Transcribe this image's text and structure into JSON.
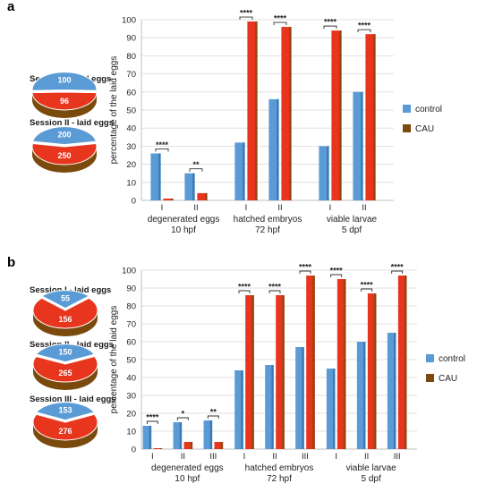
{
  "colors": {
    "control": "#5a9bd5",
    "control_dark": "#2f6ea8",
    "cau": "#e8351e",
    "cau_dark": "#7a4a0c",
    "purple": "#7b5fb0",
    "grid": "#d9d9d9"
  },
  "panels": [
    {
      "letter": "a",
      "pies": [
        {
          "title": "Session I - laid eggs",
          "control": 100,
          "cau": 96
        },
        {
          "title": "Session II - laid eggs",
          "control": 200,
          "cau": 250
        }
      ]
    },
    {
      "letter": "b",
      "pies": [
        {
          "title": "Session I - laid eggs",
          "control": 55,
          "cau": 156
        },
        {
          "title": "Session II - laid eggs",
          "control": 150,
          "cau": 265
        },
        {
          "title": "Session III - laid eggs",
          "control": 153,
          "cau": 276
        }
      ]
    }
  ],
  "chart_data": [
    {
      "type": "bar",
      "panel": "a",
      "ylabel": "percentage of the laid eggs",
      "ylim": [
        0,
        100
      ],
      "yticks": [
        0,
        10,
        20,
        30,
        40,
        50,
        60,
        70,
        80,
        90,
        100
      ],
      "grid": true,
      "legend_position": "right",
      "series_names": [
        "control",
        "CAU"
      ],
      "groups": [
        {
          "line1": "degenerated eggs",
          "line2": "10 hpf",
          "sessions": [
            {
              "label": "I",
              "control": 26,
              "cau": 1,
              "sig": "****"
            },
            {
              "label": "II",
              "control": 15,
              "cau": 4,
              "sig": "**"
            }
          ]
        },
        {
          "line1": "hatched embryos",
          "line2": "72 hpf",
          "sessions": [
            {
              "label": "I",
              "control": 32,
              "cau": 99,
              "sig": "****"
            },
            {
              "label": "II",
              "control": 56,
              "cau": 96,
              "sig": "****"
            }
          ]
        },
        {
          "line1": "viable larvae",
          "line2": "5 dpf",
          "sessions": [
            {
              "label": "I",
              "control": 30,
              "cau": 94,
              "sig": "****"
            },
            {
              "label": "II",
              "control": 60,
              "cau": 92,
              "sig": "****"
            }
          ]
        }
      ]
    },
    {
      "type": "bar",
      "panel": "b",
      "ylabel": "percentage of the laid eggs",
      "ylim": [
        0,
        100
      ],
      "yticks": [
        0,
        10,
        20,
        30,
        40,
        50,
        60,
        70,
        80,
        90,
        100
      ],
      "grid": true,
      "legend_position": "right",
      "series_names": [
        "control",
        "CAU"
      ],
      "groups": [
        {
          "line1": "degenerated eggs",
          "line2": "10 hpf",
          "sessions": [
            {
              "label": "I",
              "control": 13,
              "cau": 0.5,
              "sig": "****"
            },
            {
              "label": "II",
              "control": 15,
              "cau": 4,
              "sig": "*"
            },
            {
              "label": "III",
              "control": 16,
              "cau": 4,
              "sig": "**"
            }
          ]
        },
        {
          "line1": "hatched embryos",
          "line2": "72 hpf",
          "sessions": [
            {
              "label": "I",
              "control": 44,
              "cau": 86,
              "sig": "****"
            },
            {
              "label": "II",
              "control": 47,
              "cau": 86,
              "sig": "****"
            },
            {
              "label": "III",
              "control": 57,
              "cau": 97,
              "sig": "****"
            }
          ]
        },
        {
          "line1": "viable larvae",
          "line2": "5 dpf",
          "sessions": [
            {
              "label": "I",
              "control": 45,
              "cau": 95,
              "sig": "****"
            },
            {
              "label": "II",
              "control": 60,
              "cau": 87,
              "sig": "****"
            },
            {
              "label": "III",
              "control": 65,
              "cau": 97,
              "sig": "****"
            }
          ]
        }
      ]
    }
  ]
}
